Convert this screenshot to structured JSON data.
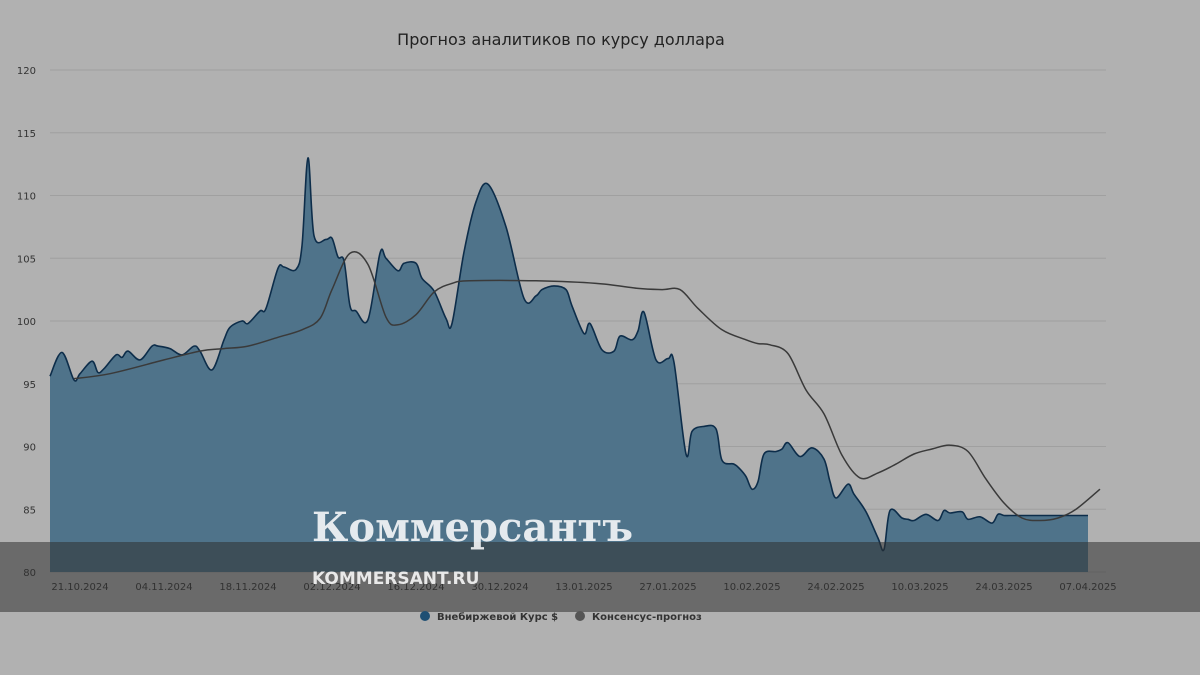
{
  "chart_data": {
    "type": "area",
    "title": "Прогноз аналитиков по курсу доллара",
    "xlabel": "",
    "ylabel": "",
    "ylim": [
      80,
      120
    ],
    "yticks": [
      80,
      85,
      90,
      95,
      100,
      105,
      110,
      115,
      120
    ],
    "xlim": [
      "2024-10-16",
      "2025-04-10"
    ],
    "x_tick_labels": [
      {
        "date": "2024-10-21",
        "label": "21.10.2024"
      },
      {
        "date": "2024-11-04",
        "label": "04.11.2024"
      },
      {
        "date": "2024-11-18",
        "label": "18.11.2024"
      },
      {
        "date": "2024-12-02",
        "label": "02.12.2024"
      },
      {
        "date": "2024-12-16",
        "label": "16.12.2024"
      },
      {
        "date": "2024-12-30",
        "label": "30.12.2024"
      },
      {
        "date": "2025-01-13",
        "label": "13.01.2025"
      },
      {
        "date": "2025-01-27",
        "label": "27.01.2025"
      },
      {
        "date": "2025-02-10",
        "label": "10.02.2025"
      },
      {
        "date": "2025-02-24",
        "label": "24.02.2025"
      },
      {
        "date": "2025-03-10",
        "label": "10.03.2025"
      },
      {
        "date": "2025-03-24",
        "label": "24.03.2025"
      },
      {
        "date": "2025-04-07",
        "label": "07.04.2025"
      }
    ],
    "grid": true,
    "legend_position": "bottom-center",
    "colors": {
      "area_fill": "#4f738a",
      "area_stroke": "#0d2d4a",
      "consensus_line": "#3a3a3a",
      "legend_marker_area": "#1f4f73",
      "legend_marker_line": "#555555",
      "gridline": "#a0a0a0",
      "background": "#b1b1b1"
    },
    "series": [
      {
        "name": "Внебиржевой Курс $",
        "type": "area",
        "x": [
          "2024-10-16",
          "2024-10-18",
          "2024-10-20",
          "2024-10-21",
          "2024-10-23",
          "2024-10-24",
          "2024-10-25",
          "2024-10-27",
          "2024-10-28",
          "2024-10-29",
          "2024-10-31",
          "2024-11-02",
          "2024-11-03",
          "2024-11-05",
          "2024-11-07",
          "2024-11-09",
          "2024-11-10",
          "2024-11-12",
          "2024-11-14",
          "2024-11-15",
          "2024-11-17",
          "2024-11-18",
          "2024-11-20",
          "2024-11-21",
          "2024-11-23",
          "2024-11-24",
          "2024-11-26",
          "2024-11-27",
          "2024-11-28",
          "2024-11-29",
          "2024-12-01",
          "2024-12-02",
          "2024-12-03",
          "2024-12-04",
          "2024-12-05",
          "2024-12-06",
          "2024-12-08",
          "2024-12-10",
          "2024-12-11",
          "2024-12-13",
          "2024-12-14",
          "2024-12-16",
          "2024-12-17",
          "2024-12-19",
          "2024-12-21",
          "2024-12-22",
          "2024-12-24",
          "2024-12-26",
          "2024-12-28",
          "2024-12-31",
          "2025-01-03",
          "2025-01-05",
          "2025-01-06",
          "2025-01-08",
          "2025-01-10",
          "2025-01-11",
          "2025-01-13",
          "2025-01-14",
          "2025-01-16",
          "2025-01-18",
          "2025-01-19",
          "2025-01-21",
          "2025-01-22",
          "2025-01-23",
          "2025-01-25",
          "2025-01-27",
          "2025-01-28",
          "2025-01-30",
          "2025-01-31",
          "2025-02-02",
          "2025-02-04",
          "2025-02-05",
          "2025-02-07",
          "2025-02-08",
          "2025-02-09",
          "2025-02-10",
          "2025-02-11",
          "2025-02-12",
          "2025-02-14",
          "2025-02-15",
          "2025-02-16",
          "2025-02-18",
          "2025-02-20",
          "2025-02-22",
          "2025-02-23",
          "2025-02-24",
          "2025-02-26",
          "2025-02-27",
          "2025-03-01",
          "2025-03-03",
          "2025-03-04",
          "2025-03-05",
          "2025-03-07",
          "2025-03-08",
          "2025-03-09",
          "2025-03-11",
          "2025-03-13",
          "2025-03-14",
          "2025-03-15",
          "2025-03-17",
          "2025-03-18",
          "2025-03-20",
          "2025-03-22",
          "2025-03-23",
          "2025-03-24",
          "2025-03-25",
          "2025-03-27",
          "2025-03-29",
          "2025-03-31",
          "2025-04-02",
          "2025-04-04",
          "2025-04-06",
          "2025-04-07"
        ],
        "values": [
          95.6,
          97.5,
          95.3,
          95.8,
          96.8,
          95.9,
          96.2,
          97.3,
          97.1,
          97.6,
          96.9,
          98.0,
          98.0,
          97.8,
          97.3,
          98.0,
          97.6,
          96.1,
          98.5,
          99.5,
          100.0,
          99.8,
          100.8,
          101.0,
          104.2,
          104.3,
          104.1,
          106.0,
          113.0,
          106.8,
          106.5,
          106.6,
          105.1,
          104.8,
          101.2,
          100.8,
          100.1,
          105.4,
          105.0,
          104.0,
          104.6,
          104.6,
          103.4,
          102.4,
          100.2,
          99.8,
          105.5,
          109.5,
          110.9,
          107.5,
          101.8,
          102.0,
          102.5,
          102.8,
          102.5,
          101.2,
          99.0,
          99.8,
          97.7,
          97.6,
          98.8,
          98.5,
          99.2,
          100.7,
          96.9,
          97.0,
          96.7,
          89.4,
          91.2,
          91.6,
          91.4,
          88.9,
          88.6,
          88.2,
          87.6,
          86.6,
          87.2,
          89.4,
          89.6,
          89.8,
          90.3,
          89.2,
          89.9,
          89.0,
          87.2,
          85.9,
          87.0,
          86.2,
          84.8,
          82.7,
          81.8,
          84.9,
          84.3,
          84.2,
          84.1,
          84.6,
          84.1,
          84.9,
          84.7,
          84.8,
          84.2,
          84.4,
          83.9,
          84.6,
          84.5,
          84.5,
          84.5,
          84.5,
          84.5,
          84.5,
          84.5,
          84.5,
          84.5
        ],
        "color": "#0d2d4a"
      },
      {
        "name": "Консенсус-прогноз",
        "type": "line",
        "x": [
          "2024-10-20",
          "2024-10-26",
          "2024-11-04",
          "2024-11-10",
          "2024-11-14",
          "2024-11-18",
          "2024-11-23",
          "2024-11-27",
          "2024-11-30",
          "2024-12-02",
          "2024-12-05",
          "2024-12-08",
          "2024-12-11",
          "2024-12-13",
          "2024-12-16",
          "2024-12-19",
          "2024-12-22",
          "2024-12-25",
          "2025-01-05",
          "2025-01-15",
          "2025-01-22",
          "2025-01-26",
          "2025-01-29",
          "2025-02-01",
          "2025-02-05",
          "2025-02-09",
          "2025-02-11",
          "2025-02-13",
          "2025-02-16",
          "2025-02-19",
          "2025-02-22",
          "2025-02-25",
          "2025-02-28",
          "2025-03-03",
          "2025-03-06",
          "2025-03-09",
          "2025-03-12",
          "2025-03-15",
          "2025-03-18",
          "2025-03-21",
          "2025-03-24",
          "2025-03-27",
          "2025-03-30",
          "2025-04-02",
          "2025-04-05",
          "2025-04-09"
        ],
        "values": [
          95.4,
          95.8,
          96.9,
          97.6,
          97.8,
          98.0,
          98.7,
          99.3,
          100.2,
          102.5,
          105.4,
          104.5,
          100.3,
          99.7,
          100.5,
          102.3,
          103.0,
          103.2,
          103.2,
          103.0,
          102.6,
          102.5,
          102.5,
          101.0,
          99.3,
          98.5,
          98.2,
          98.1,
          97.4,
          94.5,
          92.6,
          89.3,
          87.5,
          87.9,
          88.6,
          89.4,
          89.8,
          90.1,
          89.6,
          87.4,
          85.5,
          84.3,
          84.1,
          84.3,
          85.0,
          86.6
        ],
        "color": "#3a3a3a"
      }
    ]
  },
  "watermark": {
    "logo_text": "Коммерсантъ",
    "url_text": "KOMMERSANT.RU",
    "band_color": "#303030"
  }
}
